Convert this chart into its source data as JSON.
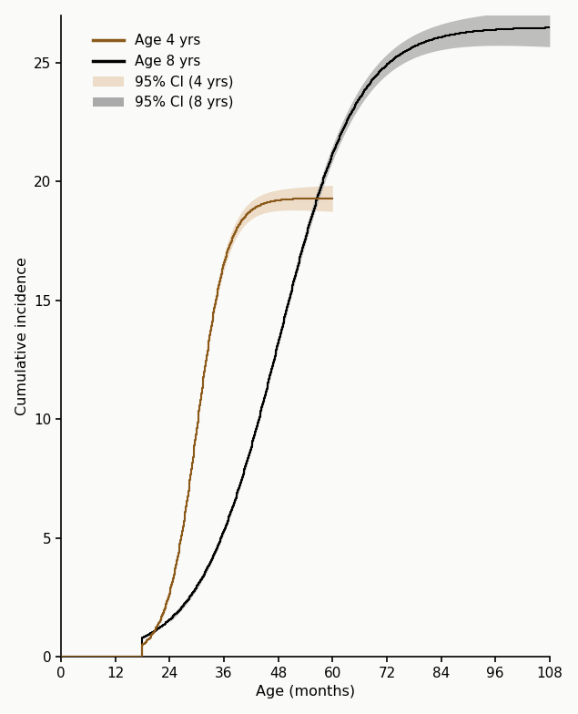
{
  "title": "",
  "xlabel": "Age (months)",
  "ylabel": "Cumulative incidence",
  "xlim": [
    0,
    108
  ],
  "ylim": [
    0,
    27
  ],
  "xticks": [
    0,
    12,
    24,
    36,
    48,
    60,
    72,
    84,
    96,
    108
  ],
  "yticks": [
    0,
    5,
    10,
    15,
    20,
    25
  ],
  "color_4yr": "#8B5A1A",
  "color_8yr": "#000000",
  "ci_color_4yr": "#eddcc8",
  "ci_color_8yr": "#aaaaaa",
  "line_width": 1.5,
  "background_color": "#fafaf8",
  "legend_labels": [
    "Age 4 yrs",
    "Age 8 yrs",
    "95% CI (4 yrs)",
    "95% CI (8 yrs)"
  ],
  "4yr_inflection": 30,
  "4yr_rate": 0.3,
  "4yr_max": 19.3,
  "4yr_start": 18,
  "4yr_end": 60,
  "8yr_inflection": 48,
  "8yr_rate": 0.115,
  "8yr_max": 26.5,
  "8yr_start": 18,
  "8yr_end": 108
}
